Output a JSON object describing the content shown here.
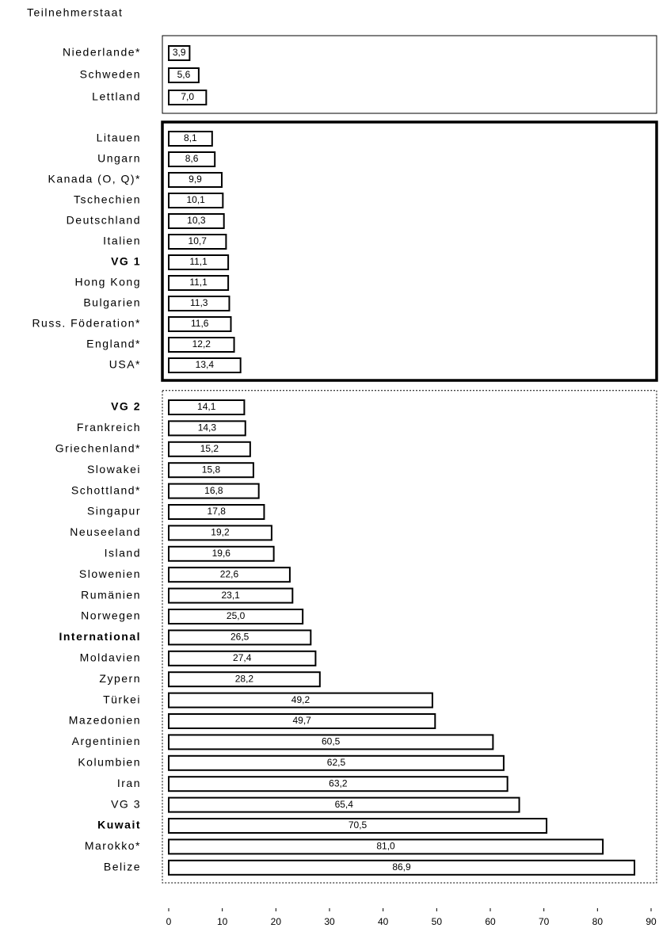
{
  "chart_data": {
    "type": "bar",
    "orientation": "horizontal",
    "y_label": "Teilnehmerstaat",
    "color": "#ffffff",
    "xlim": [
      0,
      90
    ],
    "xticks": [
      0,
      10,
      20,
      30,
      40,
      50,
      60,
      70,
      80,
      90
    ],
    "groups": [
      {
        "frame": "thin",
        "bold": [],
        "categories": [
          "Niederlande*",
          "Schweden",
          "Lettland"
        ],
        "values": [
          3.9,
          5.6,
          7.0
        ],
        "value_labels": [
          "3,9",
          "5,6",
          "7,0"
        ]
      },
      {
        "frame": "thick",
        "bold": [
          6
        ],
        "categories": [
          "Litauen",
          "Ungarn",
          "Kanada (O, Q)*",
          "Tschechien",
          "Deutschland",
          "Italien",
          "VG 1",
          "Hong Kong",
          "Bulgarien",
          "Russ. Föderation*",
          "England*",
          "USA*"
        ],
        "values": [
          8.1,
          8.6,
          9.9,
          10.1,
          10.3,
          10.7,
          11.1,
          11.1,
          11.3,
          11.6,
          12.2,
          13.4
        ],
        "value_labels": [
          "8,1",
          "8,6",
          "9,9",
          "10,1",
          "10,3",
          "10,7",
          "11,1",
          "11,1",
          "11,3",
          "11,6",
          "12,2",
          "13,4"
        ]
      },
      {
        "frame": "dotted",
        "bold": [
          0,
          11,
          20
        ],
        "categories": [
          "VG 2",
          "Frankreich",
          "Griechenland*",
          "Slowakei",
          "Schottland*",
          "Singapur",
          "Neuseeland",
          "Island",
          "Slowenien",
          "Rumänien",
          "Norwegen",
          "International",
          "Moldavien",
          "Zypern",
          "Türkei",
          "Mazedonien",
          "Argentinien",
          "Kolumbien",
          "Iran",
          "VG 3",
          "Kuwait",
          "Marokko*",
          "Belize"
        ],
        "values": [
          14.1,
          14.3,
          15.2,
          15.8,
          16.8,
          17.8,
          19.2,
          19.6,
          22.6,
          23.1,
          25.0,
          26.5,
          27.4,
          28.2,
          49.2,
          49.7,
          60.5,
          62.5,
          63.2,
          65.4,
          70.5,
          81.0,
          86.9
        ],
        "value_labels": [
          "14,1",
          "14,3",
          "15,2",
          "15,8",
          "16,8",
          "17,8",
          "19,2",
          "19,6",
          "22,6",
          "23,1",
          "25,0",
          "26,5",
          "27,4",
          "28,2",
          "49,2",
          "49,7",
          "60,5",
          "62,5",
          "63,2",
          "65,4",
          "70,5",
          "81,0",
          "86,9"
        ]
      }
    ]
  }
}
